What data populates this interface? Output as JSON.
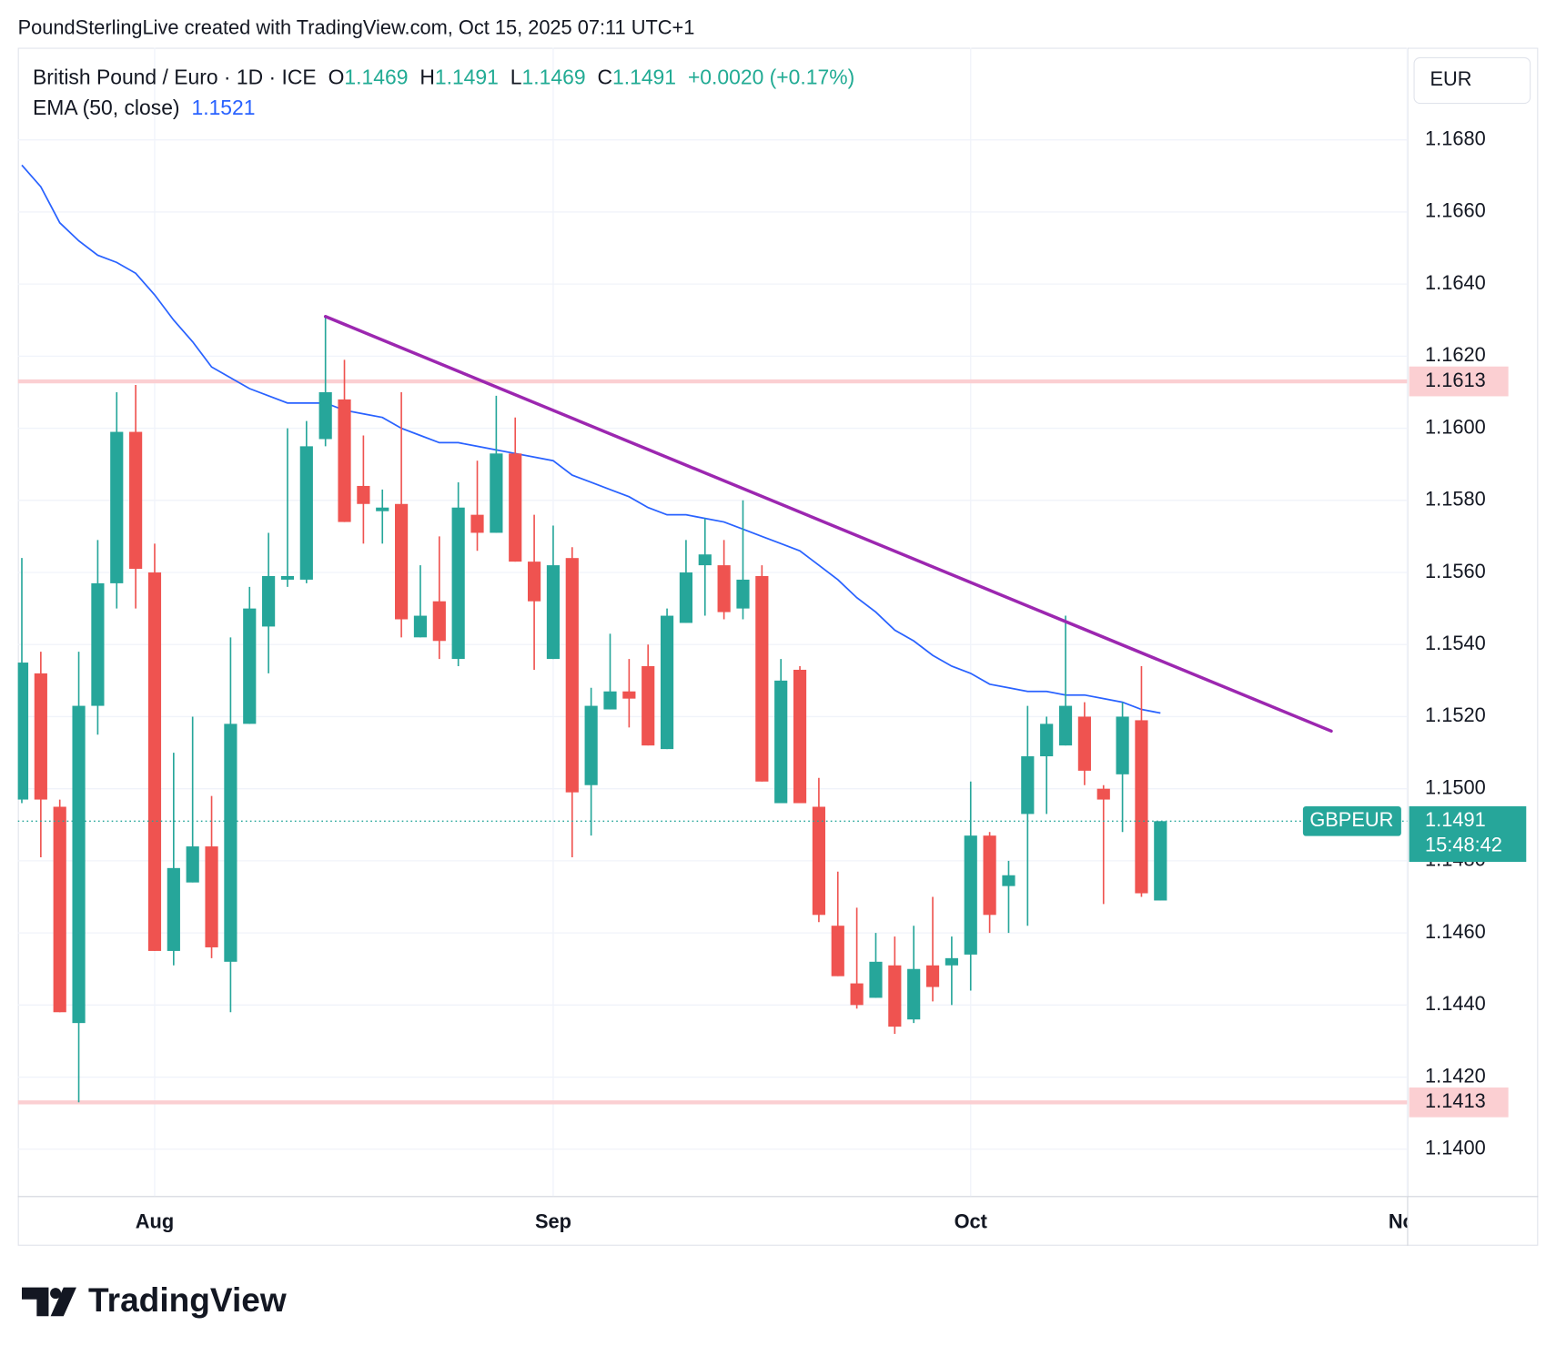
{
  "header": "PoundSterlingLive created with TradingView.com, Oct 15, 2025 07:11 UTC+1",
  "logo": "TradingView",
  "chart_data": {
    "type": "candlestick",
    "legend": {
      "symbol": "British Pound / Euro · 1D · ICE",
      "open_label": "O",
      "open": 1.1469,
      "high_label": "H",
      "high": 1.1491,
      "low_label": "L",
      "low": 1.1469,
      "close_label": "C",
      "close": 1.1491,
      "change": "+0.0020 (+0.17%)"
    },
    "currency": "EUR",
    "up_color": "#26a69a",
    "down_color": "#ef5350",
    "categories": [
      null,
      null,
      null,
      null,
      null,
      null,
      null,
      "Aug",
      null,
      null,
      null,
      null,
      null,
      null,
      null,
      null,
      null,
      null,
      null,
      null,
      null,
      null,
      null,
      null,
      null,
      null,
      null,
      null,
      "Sep",
      null,
      null,
      null,
      null,
      null,
      null,
      null,
      null,
      null,
      null,
      null,
      null,
      null,
      null,
      null,
      null,
      null,
      null,
      null,
      null,
      null,
      "Oct",
      null,
      null,
      null,
      null,
      null,
      null,
      null,
      null,
      null,
      null,
      null,
      null,
      null,
      null,
      null,
      null,
      null,
      null,
      null,
      null,
      null,
      null,
      "Nov"
    ],
    "open": [
      1.1497,
      1.1532,
      1.1495,
      1.1435,
      1.1523,
      1.1557,
      1.1599,
      1.156,
      1.1455,
      1.1474,
      1.1484,
      1.1452,
      1.1518,
      1.1545,
      1.1558,
      1.1558,
      1.1597,
      1.1608,
      1.1584,
      1.1577,
      1.1579,
      1.1542,
      1.1552,
      1.1536,
      1.1576,
      1.1571,
      1.1593,
      1.1563,
      1.1536,
      1.1564,
      1.1501,
      1.1522,
      1.1527,
      1.1534,
      1.1511,
      1.1546,
      1.1562,
      1.1562,
      1.155,
      1.1559,
      1.1496,
      1.1533,
      1.1495,
      1.1462,
      1.1446,
      1.1442,
      1.1451,
      1.1436,
      1.1451,
      1.1451,
      1.1454,
      1.1487,
      1.1473,
      1.1493,
      1.1509,
      1.1512,
      1.152,
      1.15,
      1.1504,
      1.1519,
      1.1469,
      null,
      null,
      null,
      null,
      null,
      null,
      null,
      null,
      null,
      null,
      null,
      null,
      null
    ],
    "high": [
      1.1564,
      1.1538,
      1.1497,
      1.1538,
      1.1569,
      1.161,
      1.1612,
      1.1568,
      1.151,
      1.152,
      1.1498,
      1.1542,
      1.1556,
      1.1571,
      1.16,
      1.1602,
      1.1631,
      1.1619,
      1.1598,
      1.1583,
      1.161,
      1.1562,
      1.157,
      1.1585,
      1.1591,
      1.1609,
      1.1603,
      1.1576,
      1.1573,
      1.1567,
      1.1528,
      1.1543,
      1.1536,
      1.154,
      1.155,
      1.1569,
      1.1575,
      1.1569,
      1.158,
      1.1562,
      1.1536,
      1.1534,
      1.1503,
      1.1477,
      1.1467,
      1.146,
      1.1459,
      1.1462,
      1.147,
      1.1459,
      1.1502,
      1.1488,
      1.148,
      1.1523,
      1.152,
      1.1548,
      1.1524,
      1.1501,
      1.1524,
      1.1534,
      1.1491,
      null,
      null,
      null,
      null,
      null,
      null,
      null,
      null,
      null,
      null,
      null,
      null,
      null
    ],
    "low": [
      1.1496,
      1.1481,
      1.1438,
      1.1413,
      1.1515,
      1.155,
      1.155,
      1.1455,
      1.1451,
      1.1474,
      1.1453,
      1.1438,
      1.1518,
      1.1532,
      1.1556,
      1.1557,
      1.1595,
      1.1574,
      1.1568,
      1.1568,
      1.1542,
      1.1542,
      1.1536,
      1.1534,
      1.1566,
      1.1571,
      1.1563,
      1.1533,
      1.1536,
      1.1481,
      1.1487,
      1.1522,
      1.1517,
      1.1512,
      1.1511,
      1.1546,
      1.1548,
      1.1547,
      1.1547,
      1.1502,
      1.1496,
      1.1496,
      1.1463,
      1.1448,
      1.1439,
      1.1442,
      1.1432,
      1.1435,
      1.1441,
      1.144,
      1.1444,
      1.146,
      1.146,
      1.1462,
      1.1493,
      1.1512,
      1.1501,
      1.1468,
      1.1488,
      1.147,
      1.1469,
      null,
      null,
      null,
      null,
      null,
      null,
      null,
      null,
      null,
      null,
      null,
      null,
      null
    ],
    "close": [
      1.1535,
      1.1497,
      1.1438,
      1.1523,
      1.1557,
      1.1599,
      1.1561,
      1.1455,
      1.1478,
      1.1484,
      1.1456,
      1.1518,
      1.155,
      1.1559,
      1.1559,
      1.1595,
      1.161,
      1.1574,
      1.1579,
      1.1578,
      1.1547,
      1.1548,
      1.1541,
      1.1578,
      1.1571,
      1.1593,
      1.1563,
      1.1552,
      1.1562,
      1.1499,
      1.1523,
      1.1527,
      1.1525,
      1.1512,
      1.1548,
      1.156,
      1.1565,
      1.1549,
      1.1558,
      1.1502,
      1.153,
      1.1496,
      1.1465,
      1.1448,
      1.144,
      1.1452,
      1.1434,
      1.145,
      1.1445,
      1.1453,
      1.1487,
      1.1465,
      1.1476,
      1.1509,
      1.1518,
      1.1523,
      1.1505,
      1.1497,
      1.152,
      1.1471,
      1.1491,
      null,
      null,
      null,
      null,
      null,
      null,
      null,
      null,
      null,
      null,
      null,
      null,
      null
    ],
    "ema": {
      "name": "EMA (50, close)",
      "color": "#2962ff",
      "last": 1.1521,
      "values": [
        1.1673,
        1.1667,
        1.1657,
        1.1652,
        1.1648,
        1.1646,
        1.1643,
        1.1637,
        1.163,
        1.1624,
        1.1617,
        1.1614,
        1.1611,
        1.1609,
        1.1607,
        1.1607,
        1.1607,
        1.1605,
        1.1604,
        1.1603,
        1.16,
        1.1598,
        1.1596,
        1.1596,
        1.1595,
        1.1594,
        1.1593,
        1.1592,
        1.1591,
        1.1587,
        1.1585,
        1.1583,
        1.1581,
        1.1578,
        1.1576,
        1.1576,
        1.1575,
        1.1574,
        1.1572,
        1.157,
        1.1568,
        1.1566,
        1.1562,
        1.1558,
        1.1553,
        1.1549,
        1.1544,
        1.1541,
        1.1537,
        1.1534,
        1.1532,
        1.1529,
        1.1528,
        1.1527,
        1.1527,
        1.1526,
        1.1526,
        1.1525,
        1.1524,
        1.1522,
        1.1521,
        null,
        null,
        null,
        null,
        null,
        null,
        null,
        null,
        null,
        null,
        null,
        null,
        null
      ]
    },
    "trendline": {
      "color": "#9c27b0",
      "x": [
        16,
        69
      ],
      "y": [
        1.1631,
        1.1516
      ]
    },
    "hlines": [
      {
        "value": 1.1613,
        "color": "#fbcfd2"
      },
      {
        "value": 1.1413,
        "color": "#fbcfd2"
      }
    ],
    "last_price": {
      "symbol": "GBPEUR",
      "value": 1.1491,
      "countdown": "15:48:42",
      "color": "#26a69a"
    },
    "ylim": [
      1.1387,
      1.1705
    ],
    "yticks": [
      {
        "value": 1.14,
        "label": "1.1400"
      },
      {
        "value": 1.142,
        "label": "1.1420"
      },
      {
        "value": 1.144,
        "label": "1.1440"
      },
      {
        "value": 1.146,
        "label": "1.1460"
      },
      {
        "value": 1.148,
        "label": "1.1480"
      },
      {
        "value": 1.15,
        "label": "1.1500"
      },
      {
        "value": 1.152,
        "label": "1.1520"
      },
      {
        "value": 1.154,
        "label": "1.1540"
      },
      {
        "value": 1.156,
        "label": "1.1560"
      },
      {
        "value": 1.158,
        "label": "1.1580"
      },
      {
        "value": 1.16,
        "label": "1.1600"
      },
      {
        "value": 1.162,
        "label": "1.1620"
      },
      {
        "value": 1.164,
        "label": "1.1640"
      },
      {
        "value": 1.166,
        "label": "1.1660"
      },
      {
        "value": 1.168,
        "label": "1.1680"
      }
    ],
    "grid": true
  }
}
